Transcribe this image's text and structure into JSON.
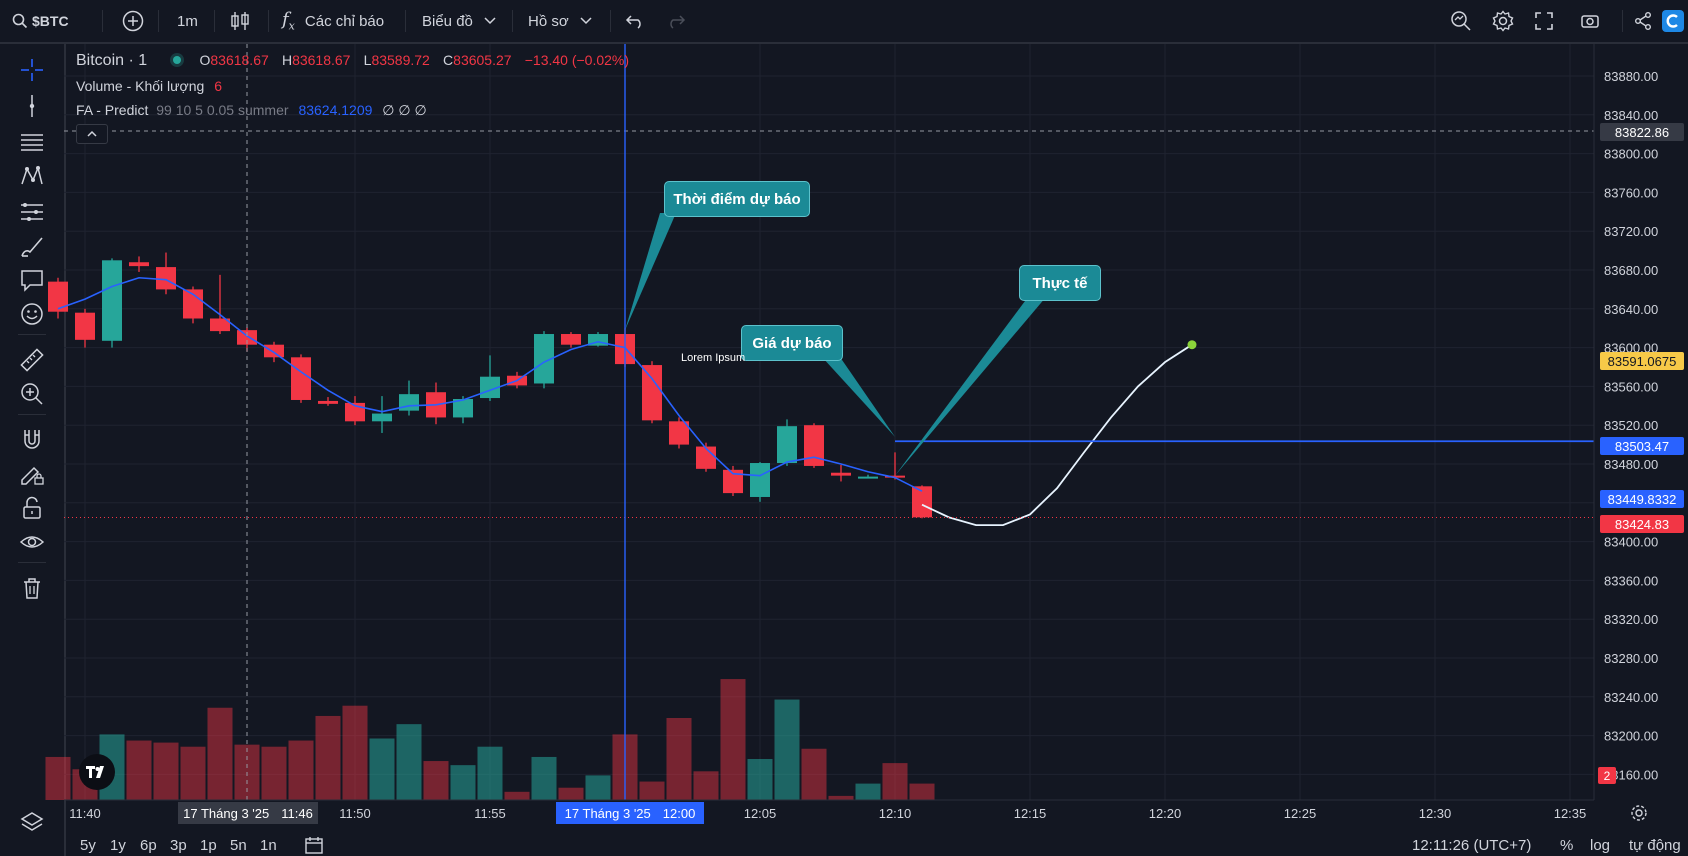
{
  "topbar": {
    "symbol": "$BTC",
    "interval": "1m",
    "indicators_label": "Các chỉ báo",
    "chart_type_label": "Biểu đồ",
    "profile_label": "Hồ sơ"
  },
  "legend": {
    "symbol_name": "Bitcoin · 1",
    "o_label": "O",
    "o_value": "83618.67",
    "h_label": "H",
    "h_value": "83618.67",
    "l_label": "L",
    "l_value": "83589.72",
    "c_label": "C",
    "c_value": "83605.27",
    "change": "−13.40 (−0.02%)",
    "volume_label": "Volume - Khối lượng",
    "volume_value": "6",
    "fa_label": "FA - Predict",
    "fa_params": "99 10 5 0.05 summer",
    "fa_value": "83624.1209",
    "fa_extra": "∅ ∅ ∅"
  },
  "annotations": {
    "forecast_time": "Thời điểm dự báo",
    "forecast_price": "Giá dự báo",
    "actual": "Thực tế",
    "lorem": "Lorem Ipsum"
  },
  "price_axis": {
    "ticks": [
      "83880.00",
      "83840.00",
      "83800.00",
      "83760.00",
      "83720.00",
      "83680.00",
      "83640.00",
      "83600.00",
      "83560.00",
      "83520.00",
      "83480.00",
      "83440.00",
      "83400.00",
      "83360.00",
      "83320.00",
      "83280.00",
      "83240.00",
      "83200.00",
      "83160.00"
    ],
    "tag_crosshair": "83822.86",
    "tag_yellow": "83591.0675",
    "tag_line": "83503.47",
    "tag_fa": "83449.8332",
    "tag_last": "83424.83",
    "tag_volume": "2"
  },
  "time_axis": {
    "ticks": [
      "11:40",
      "11:50",
      "11:55",
      "12:05",
      "12:10",
      "12:15",
      "12:20",
      "12:25",
      "12:30",
      "12:35"
    ],
    "crosshair_label_a": "17 Tháng 3 '25",
    "crosshair_time_a": "11:46",
    "crosshair_label_b": "17 Tháng 3 '25",
    "crosshair_time_b": "12:00"
  },
  "bottombar": {
    "ranges": [
      "5y",
      "1y",
      "6p",
      "3p",
      "1p",
      "5n",
      "1n"
    ],
    "clock": "12:11:26 (UTC+7)",
    "percent": "%",
    "log": "log",
    "auto": "tự động"
  },
  "colors": {
    "up": "#26a69a",
    "down": "#f23645",
    "accent": "#2962ff",
    "annotation": "#1b8a96"
  },
  "chart_data": {
    "type": "candlestick",
    "interval": "1m",
    "ylim": [
      83140,
      83900
    ],
    "candles": [
      {
        "t": "11:39",
        "o": 83668,
        "h": 83672,
        "l": 83630,
        "c": 83637
      },
      {
        "t": "11:40",
        "o": 83636,
        "h": 83640,
        "l": 83600,
        "c": 83608
      },
      {
        "t": "11:41",
        "o": 83607,
        "h": 83692,
        "l": 83600,
        "c": 83690
      },
      {
        "t": "11:42",
        "o": 83688,
        "h": 83694,
        "l": 83678,
        "c": 83684
      },
      {
        "t": "11:43",
        "o": 83683,
        "h": 83698,
        "l": 83655,
        "c": 83660
      },
      {
        "t": "11:44",
        "o": 83660,
        "h": 83663,
        "l": 83625,
        "c": 83630
      },
      {
        "t": "11:45",
        "o": 83630,
        "h": 83675,
        "l": 83614,
        "c": 83617
      },
      {
        "t": "11:46",
        "o": 83618,
        "h": 83621,
        "l": 83596,
        "c": 83603
      },
      {
        "t": "11:47",
        "o": 83603,
        "h": 83606,
        "l": 83585,
        "c": 83590
      },
      {
        "t": "11:48",
        "o": 83590,
        "h": 83593,
        "l": 83543,
        "c": 83546
      },
      {
        "t": "11:49",
        "o": 83545,
        "h": 83549,
        "l": 83540,
        "c": 83542
      },
      {
        "t": "11:50",
        "o": 83543,
        "h": 83550,
        "l": 83520,
        "c": 83524
      },
      {
        "t": "11:51",
        "o": 83524,
        "h": 83550,
        "l": 83512,
        "c": 83532
      },
      {
        "t": "11:52",
        "o": 83535,
        "h": 83566,
        "l": 83530,
        "c": 83552
      },
      {
        "t": "11:53",
        "o": 83554,
        "h": 83564,
        "l": 83521,
        "c": 83528
      },
      {
        "t": "11:54",
        "o": 83528,
        "h": 83550,
        "l": 83522,
        "c": 83547
      },
      {
        "t": "11:55",
        "o": 83548,
        "h": 83592,
        "l": 83545,
        "c": 83570
      },
      {
        "t": "11:56",
        "o": 83571,
        "h": 83575,
        "l": 83558,
        "c": 83561
      },
      {
        "t": "11:57",
        "o": 83563,
        "h": 83617,
        "l": 83558,
        "c": 83614
      },
      {
        "t": "11:58",
        "o": 83614,
        "h": 83616,
        "l": 83600,
        "c": 83603
      },
      {
        "t": "11:59",
        "o": 83602,
        "h": 83616,
        "l": 83601,
        "c": 83614
      },
      {
        "t": "12:00",
        "o": 83614,
        "h": 83620,
        "l": 83580,
        "c": 83583
      },
      {
        "t": "12:01",
        "o": 83582,
        "h": 83586,
        "l": 83522,
        "c": 83525
      },
      {
        "t": "12:02",
        "o": 83524,
        "h": 83528,
        "l": 83496,
        "c": 83500
      },
      {
        "t": "12:03",
        "o": 83498,
        "h": 83502,
        "l": 83472,
        "c": 83475
      },
      {
        "t": "12:04",
        "o": 83474,
        "h": 83478,
        "l": 83447,
        "c": 83450
      },
      {
        "t": "12:05",
        "o": 83446,
        "h": 83482,
        "l": 83441,
        "c": 83481
      },
      {
        "t": "12:06",
        "o": 83481,
        "h": 83526,
        "l": 83478,
        "c": 83519
      },
      {
        "t": "12:07",
        "o": 83520,
        "h": 83522,
        "l": 83476,
        "c": 83478
      },
      {
        "t": "12:08",
        "o": 83471,
        "h": 83479,
        "l": 83462,
        "c": 83468
      },
      {
        "t": "12:09",
        "o": 83467,
        "h": 83469,
        "l": 83466,
        "c": 83467
      },
      {
        "t": "12:10",
        "o": 83468,
        "h": 83492,
        "l": 83464,
        "c": 83466
      },
      {
        "t": "12:11",
        "o": 83457,
        "h": 83458,
        "l": 83424,
        "c": 83425
      }
    ],
    "volumes": [
      {
        "t": "11:39",
        "v": 2.1,
        "dir": "down"
      },
      {
        "t": "11:40",
        "v": 1.5,
        "dir": "down"
      },
      {
        "t": "11:41",
        "v": 3.2,
        "dir": "up"
      },
      {
        "t": "11:42",
        "v": 2.9,
        "dir": "down"
      },
      {
        "t": "11:43",
        "v": 2.8,
        "dir": "down"
      },
      {
        "t": "11:44",
        "v": 2.6,
        "dir": "down"
      },
      {
        "t": "11:45",
        "v": 4.5,
        "dir": "down"
      },
      {
        "t": "11:46",
        "v": 2.7,
        "dir": "down"
      },
      {
        "t": "11:47",
        "v": 2.6,
        "dir": "down"
      },
      {
        "t": "11:48",
        "v": 2.9,
        "dir": "down"
      },
      {
        "t": "11:49",
        "v": 4.1,
        "dir": "down"
      },
      {
        "t": "11:50",
        "v": 4.6,
        "dir": "down"
      },
      {
        "t": "11:51",
        "v": 3.0,
        "dir": "up"
      },
      {
        "t": "11:52",
        "v": 3.7,
        "dir": "up"
      },
      {
        "t": "11:53",
        "v": 1.9,
        "dir": "down"
      },
      {
        "t": "11:54",
        "v": 1.7,
        "dir": "up"
      },
      {
        "t": "11:55",
        "v": 2.6,
        "dir": "up"
      },
      {
        "t": "11:56",
        "v": 0.4,
        "dir": "down"
      },
      {
        "t": "11:57",
        "v": 2.1,
        "dir": "up"
      },
      {
        "t": "11:58",
        "v": 0.6,
        "dir": "down"
      },
      {
        "t": "11:59",
        "v": 1.2,
        "dir": "up"
      },
      {
        "t": "12:00",
        "v": 3.2,
        "dir": "down"
      },
      {
        "t": "12:01",
        "v": 0.9,
        "dir": "down"
      },
      {
        "t": "12:02",
        "v": 4.0,
        "dir": "down"
      },
      {
        "t": "12:03",
        "v": 1.4,
        "dir": "down"
      },
      {
        "t": "12:04",
        "v": 5.9,
        "dir": "down"
      },
      {
        "t": "12:05",
        "v": 2.0,
        "dir": "up"
      },
      {
        "t": "12:06",
        "v": 4.9,
        "dir": "up"
      },
      {
        "t": "12:07",
        "v": 2.5,
        "dir": "down"
      },
      {
        "t": "12:08",
        "v": 0.2,
        "dir": "down"
      },
      {
        "t": "12:09",
        "v": 0.8,
        "dir": "up"
      },
      {
        "t": "12:10",
        "v": 1.8,
        "dir": "down"
      },
      {
        "t": "12:11",
        "v": 0.8,
        "dir": "down"
      }
    ],
    "ma_line": [
      {
        "t": "11:39",
        "p": 83640
      },
      {
        "t": "11:40",
        "p": 83650
      },
      {
        "t": "11:41",
        "p": 83663
      },
      {
        "t": "11:42",
        "p": 83672
      },
      {
        "t": "11:43",
        "p": 83670
      },
      {
        "t": "11:44",
        "p": 83655
      },
      {
        "t": "11:45",
        "p": 83634
      },
      {
        "t": "11:46",
        "p": 83612
      },
      {
        "t": "11:47",
        "p": 83595
      },
      {
        "t": "11:48",
        "p": 83575
      },
      {
        "t": "11:49",
        "p": 83556
      },
      {
        "t": "11:50",
        "p": 83540
      },
      {
        "t": "11:51",
        "p": 83534
      },
      {
        "t": "11:52",
        "p": 83540
      },
      {
        "t": "11:53",
        "p": 83541
      },
      {
        "t": "11:54",
        "p": 83546
      },
      {
        "t": "11:55",
        "p": 83556
      },
      {
        "t": "11:56",
        "p": 83566
      },
      {
        "t": "11:57",
        "p": 83585
      },
      {
        "t": "11:58",
        "p": 83598
      },
      {
        "t": "11:59",
        "p": 83606
      },
      {
        "t": "12:00",
        "p": 83600
      },
      {
        "t": "12:01",
        "p": 83568
      },
      {
        "t": "12:02",
        "p": 83530
      },
      {
        "t": "12:03",
        "p": 83496
      },
      {
        "t": "12:04",
        "p": 83470
      },
      {
        "t": "12:05",
        "p": 83468
      },
      {
        "t": "12:06",
        "p": 83482
      },
      {
        "t": "12:07",
        "p": 83487
      },
      {
        "t": "12:08",
        "p": 83480
      },
      {
        "t": "12:09",
        "p": 83472
      },
      {
        "t": "12:10",
        "p": 83466
      },
      {
        "t": "12:11",
        "p": 83452
      }
    ],
    "forecast_line": [
      {
        "t": "12:11",
        "p": 83438
      },
      {
        "t": "12:12",
        "p": 83425
      },
      {
        "t": "12:13",
        "p": 83417
      },
      {
        "t": "12:14",
        "p": 83417
      },
      {
        "t": "12:15",
        "p": 83428
      },
      {
        "t": "12:16",
        "p": 83455
      },
      {
        "t": "12:17",
        "p": 83492
      },
      {
        "t": "12:18",
        "p": 83528
      },
      {
        "t": "12:19",
        "p": 83560
      },
      {
        "t": "12:20",
        "p": 83585
      },
      {
        "t": "12:21",
        "p": 83603
      }
    ],
    "horizontal_line": 83503.47,
    "last_price": 83424.83
  }
}
